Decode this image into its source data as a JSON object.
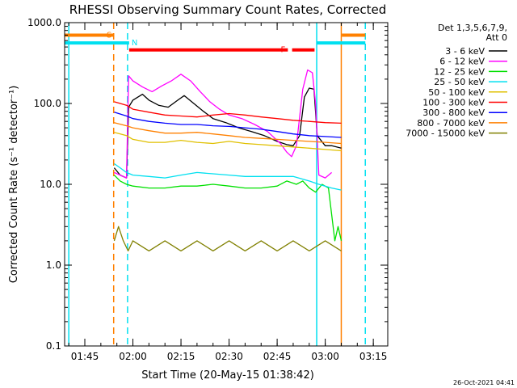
{
  "chart_data": {
    "type": "line",
    "title": "RHESSI Observing Summary Count Rates, Corrected",
    "xlabel": "Start Time (20-May-15 01:38:42)",
    "ylabel": "Corrected Count Rate (s⁻¹ detector⁻¹)",
    "y_scale": "log",
    "ylim": [
      0.1,
      1000.0
    ],
    "y_ticks": [
      {
        "value": 0.1,
        "label": "0.1"
      },
      {
        "value": 1.0,
        "label": "1.0"
      },
      {
        "value": 10.0,
        "label": "10.0"
      },
      {
        "value": 100.0,
        "label": "100.0"
      },
      {
        "value": 1000.0,
        "label": "1000.0"
      }
    ],
    "xlim": [
      "01:38:42",
      "03:19:30"
    ],
    "x_ticks": [
      "01:45",
      "02:00",
      "02:15",
      "02:30",
      "02:45",
      "03:00",
      "03:15"
    ],
    "grid": false,
    "legend": {
      "placement": "right",
      "header": [
        "Det 1,3,5,6,7,9,",
        "Att 0"
      ]
    },
    "timestamp": "26-Oct-2021 04:41",
    "flags": [
      {
        "label": "S",
        "color": "#ff8000",
        "level": 700,
        "segments": [
          [
            "01:38:42",
            "01:54:10"
          ],
          [
            "03:05:10",
            "03:12:30"
          ]
        ]
      },
      {
        "label": "N",
        "color": "#00e0f0",
        "level": 560,
        "segments": [
          [
            "01:38:42",
            "01:58:50"
          ],
          [
            "02:57:20",
            "03:12:30"
          ]
        ]
      },
      {
        "label": "F",
        "color": "#ff0000",
        "level": 460,
        "segments": [
          [
            "01:58:50",
            "02:48:20"
          ],
          [
            "02:49:40",
            "02:56:40"
          ]
        ]
      }
    ],
    "markers": [
      {
        "time": "01:40:00",
        "color": "#00e0f0",
        "style": "solid"
      },
      {
        "time": "01:54:00",
        "color": "#ff8000",
        "style": "dashed"
      },
      {
        "time": "01:58:20",
        "color": "#00e0f0",
        "style": "dashed"
      },
      {
        "time": "02:57:20",
        "color": "#00e0f0",
        "style": "solid"
      },
      {
        "time": "03:05:00",
        "color": "#ff8000",
        "style": "solid"
      },
      {
        "time": "03:12:30",
        "color": "#00e0f0",
        "style": "dashed"
      }
    ],
    "series": [
      {
        "name": "3 - 6 keV",
        "color": "#000000",
        "points": [
          [
            "01:54:10",
            16
          ],
          [
            "01:56:00",
            13
          ],
          [
            "01:58:00",
            12
          ],
          [
            "01:58:40",
            90
          ],
          [
            "02:00:00",
            110
          ],
          [
            "02:03:00",
            130
          ],
          [
            "02:05:00",
            110
          ],
          [
            "02:08:00",
            95
          ],
          [
            "02:11:00",
            90
          ],
          [
            "02:14:00",
            110
          ],
          [
            "02:16:00",
            125
          ],
          [
            "02:19:00",
            100
          ],
          [
            "02:22:00",
            80
          ],
          [
            "02:25:00",
            65
          ],
          [
            "02:29:00",
            58
          ],
          [
            "02:33:00",
            50
          ],
          [
            "02:37:00",
            45
          ],
          [
            "02:41:00",
            40
          ],
          [
            "02:45:00",
            34
          ],
          [
            "02:48:00",
            31
          ],
          [
            "02:50:00",
            30
          ],
          [
            "02:52:00",
            40
          ],
          [
            "02:53:30",
            120
          ],
          [
            "02:55:00",
            155
          ],
          [
            "02:56:30",
            150
          ],
          [
            "02:57:30",
            40
          ],
          [
            "03:00:00",
            30
          ],
          [
            "03:02:00",
            30
          ],
          [
            "03:05:00",
            28
          ]
        ]
      },
      {
        "name": "6 - 12 keV",
        "color": "#ff00ff",
        "points": [
          [
            "01:54:10",
            14
          ],
          [
            "01:58:00",
            12
          ],
          [
            "01:58:40",
            220
          ],
          [
            "02:00:00",
            190
          ],
          [
            "02:03:00",
            160
          ],
          [
            "02:06:00",
            140
          ],
          [
            "02:09:00",
            165
          ],
          [
            "02:12:00",
            190
          ],
          [
            "02:15:00",
            230
          ],
          [
            "02:18:00",
            190
          ],
          [
            "02:21:00",
            140
          ],
          [
            "02:24:00",
            105
          ],
          [
            "02:27:00",
            85
          ],
          [
            "02:30:00",
            72
          ],
          [
            "02:34:00",
            65
          ],
          [
            "02:38:00",
            55
          ],
          [
            "02:42:00",
            45
          ],
          [
            "02:46:00",
            32
          ],
          [
            "02:48:00",
            25
          ],
          [
            "02:49:30",
            22
          ],
          [
            "02:51:00",
            30
          ],
          [
            "02:53:00",
            150
          ],
          [
            "02:54:30",
            260
          ],
          [
            "02:56:00",
            240
          ],
          [
            "02:57:00",
            100
          ],
          [
            "02:58:00",
            13
          ],
          [
            "03:00:00",
            12
          ],
          [
            "03:02:00",
            14
          ]
        ]
      },
      {
        "name": "12 - 25 keV",
        "color": "#00e000",
        "points": [
          [
            "01:54:10",
            13
          ],
          [
            "01:56:00",
            11
          ],
          [
            "01:58:00",
            10
          ],
          [
            "02:00:00",
            9.5
          ],
          [
            "02:05:00",
            9
          ],
          [
            "02:10:00",
            9
          ],
          [
            "02:15:00",
            9.5
          ],
          [
            "02:20:00",
            9.5
          ],
          [
            "02:25:00",
            10
          ],
          [
            "02:30:00",
            9.5
          ],
          [
            "02:35:00",
            9
          ],
          [
            "02:40:00",
            9
          ],
          [
            "02:45:00",
            9.5
          ],
          [
            "02:48:00",
            11
          ],
          [
            "02:51:00",
            10
          ],
          [
            "02:53:00",
            11
          ],
          [
            "02:55:00",
            9
          ],
          [
            "02:57:00",
            8
          ],
          [
            "02:59:00",
            10
          ],
          [
            "03:01:00",
            9
          ],
          [
            "03:03:00",
            2
          ],
          [
            "03:04:00",
            3
          ],
          [
            "03:05:00",
            2
          ]
        ]
      },
      {
        "name": "25 - 50 keV",
        "color": "#00e0f0",
        "points": [
          [
            "01:54:10",
            18
          ],
          [
            "01:56:00",
            16
          ],
          [
            "01:58:00",
            14
          ],
          [
            "02:00:00",
            13
          ],
          [
            "02:05:00",
            12.5
          ],
          [
            "02:10:00",
            12
          ],
          [
            "02:15:00",
            13
          ],
          [
            "02:20:00",
            14
          ],
          [
            "02:25:00",
            13.5
          ],
          [
            "02:30:00",
            13
          ],
          [
            "02:35:00",
            12.5
          ],
          [
            "02:40:00",
            12.5
          ],
          [
            "02:45:00",
            12.5
          ],
          [
            "02:50:00",
            12.5
          ],
          [
            "02:55:00",
            11
          ],
          [
            "02:58:00",
            10
          ],
          [
            "03:02:00",
            9
          ],
          [
            "03:05:00",
            8.5
          ]
        ]
      },
      {
        "name": "50 - 100 keV",
        "color": "#e0c000",
        "points": [
          [
            "01:54:10",
            44
          ],
          [
            "01:58:00",
            40
          ],
          [
            "02:00:00",
            36
          ],
          [
            "02:05:00",
            33
          ],
          [
            "02:10:00",
            33
          ],
          [
            "02:15:00",
            35
          ],
          [
            "02:20:00",
            33
          ],
          [
            "02:25:00",
            32
          ],
          [
            "02:30:00",
            34
          ],
          [
            "02:35:00",
            32
          ],
          [
            "02:40:00",
            31
          ],
          [
            "02:45:00",
            30
          ],
          [
            "02:50:00",
            29
          ],
          [
            "02:55:00",
            28
          ],
          [
            "03:00:00",
            27
          ],
          [
            "03:05:00",
            26
          ]
        ]
      },
      {
        "name": "100 - 300 keV",
        "color": "#ff0000",
        "points": [
          [
            "01:54:10",
            105
          ],
          [
            "01:58:00",
            95
          ],
          [
            "02:00:00",
            85
          ],
          [
            "02:05:00",
            78
          ],
          [
            "02:10:00",
            72
          ],
          [
            "02:15:00",
            70
          ],
          [
            "02:20:00",
            68
          ],
          [
            "02:25:00",
            72
          ],
          [
            "02:30:00",
            75
          ],
          [
            "02:35:00",
            72
          ],
          [
            "02:40:00",
            68
          ],
          [
            "02:45:00",
            65
          ],
          [
            "02:50:00",
            62
          ],
          [
            "02:55:00",
            60
          ],
          [
            "03:00:00",
            58
          ],
          [
            "03:05:00",
            57
          ]
        ]
      },
      {
        "name": "300 - 800 keV",
        "color": "#0000ff",
        "points": [
          [
            "01:54:10",
            78
          ],
          [
            "01:58:00",
            70
          ],
          [
            "02:00:00",
            65
          ],
          [
            "02:05:00",
            60
          ],
          [
            "02:10:00",
            57
          ],
          [
            "02:15:00",
            55
          ],
          [
            "02:20:00",
            55
          ],
          [
            "02:25:00",
            53
          ],
          [
            "02:30:00",
            52
          ],
          [
            "02:35:00",
            50
          ],
          [
            "02:40:00",
            48
          ],
          [
            "02:45:00",
            45
          ],
          [
            "02:50:00",
            42
          ],
          [
            "02:55:00",
            40
          ],
          [
            "03:00:00",
            39
          ],
          [
            "03:05:00",
            38
          ]
        ]
      },
      {
        "name": "800 - 7000 keV",
        "color": "#ff8000",
        "points": [
          [
            "01:54:10",
            58
          ],
          [
            "01:58:00",
            53
          ],
          [
            "02:00:00",
            50
          ],
          [
            "02:05:00",
            46
          ],
          [
            "02:10:00",
            43
          ],
          [
            "02:15:00",
            43
          ],
          [
            "02:20:00",
            44
          ],
          [
            "02:25:00",
            42
          ],
          [
            "02:30:00",
            40
          ],
          [
            "02:35:00",
            38
          ],
          [
            "02:40:00",
            37
          ],
          [
            "02:45:00",
            36
          ],
          [
            "02:50:00",
            35
          ],
          [
            "02:55:00",
            34
          ],
          [
            "03:00:00",
            33
          ],
          [
            "03:05:00",
            32
          ]
        ]
      },
      {
        "name": "7000 - 15000 keV",
        "color": "#808000",
        "points": [
          [
            "01:54:10",
            2
          ],
          [
            "01:55:30",
            3
          ],
          [
            "01:57:00",
            2
          ],
          [
            "01:58:30",
            1.5
          ],
          [
            "02:00:00",
            2
          ],
          [
            "02:05:00",
            1.5
          ],
          [
            "02:10:00",
            2
          ],
          [
            "02:15:00",
            1.5
          ],
          [
            "02:20:00",
            2
          ],
          [
            "02:25:00",
            1.5
          ],
          [
            "02:30:00",
            2
          ],
          [
            "02:35:00",
            1.5
          ],
          [
            "02:40:00",
            2
          ],
          [
            "02:45:00",
            1.5
          ],
          [
            "02:50:00",
            2
          ],
          [
            "02:55:00",
            1.5
          ],
          [
            "03:00:00",
            2
          ],
          [
            "03:05:00",
            1.5
          ]
        ]
      }
    ]
  }
}
